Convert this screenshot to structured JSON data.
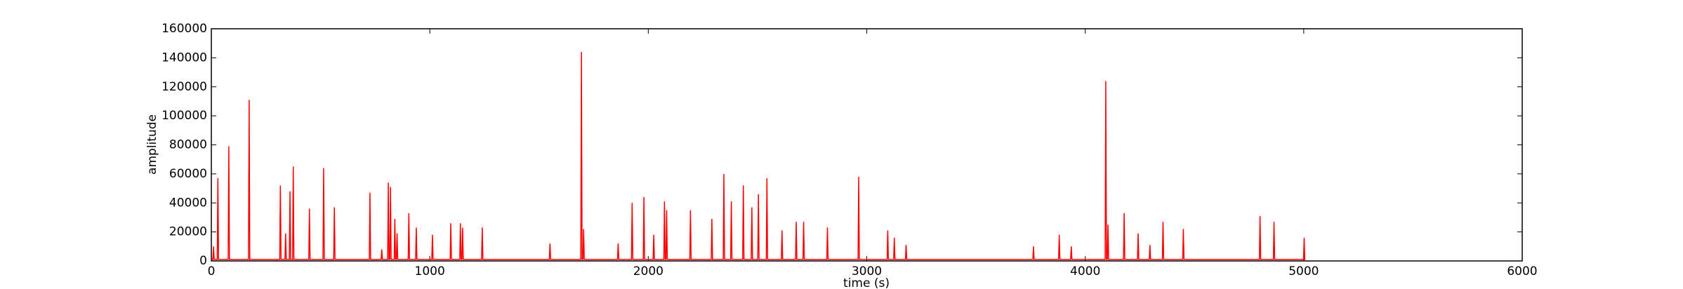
{
  "chart_data": {
    "type": "line",
    "xlabel": "time (s)",
    "ylabel": "amplitude",
    "xlim": [
      0,
      6000
    ],
    "xticks": [
      0,
      1000,
      2000,
      3000,
      4000,
      5000,
      6000
    ],
    "ylim": [
      0,
      160000
    ],
    "yticks": [
      0,
      20000,
      40000,
      60000,
      80000,
      100000,
      120000,
      140000,
      160000
    ],
    "grid": false,
    "series": [
      {
        "color": "#ff0000",
        "x": [
          0,
          7,
          10,
          13,
          27,
          30,
          33,
          77,
          80,
          83,
          170,
          173,
          176,
          313,
          316,
          319,
          337,
          340,
          343,
          357,
          360,
          363,
          372,
          375,
          378,
          446,
          449,
          452,
          511,
          514,
          517,
          560,
          563,
          566,
          723,
          726,
          729,
          777,
          780,
          783,
          807,
          810,
          813,
          817,
          820,
          823,
          837,
          840,
          843,
          847,
          850,
          853,
          901,
          904,
          907,
          935,
          938,
          941,
          1009,
          1012,
          1015,
          1093,
          1096,
          1099,
          1137,
          1140,
          1143,
          1147,
          1150,
          1153,
          1237,
          1240,
          1243,
          1547,
          1550,
          1553,
          1691,
          1694,
          1697,
          1701,
          1704,
          1707,
          1859,
          1862,
          1865,
          1923,
          1926,
          1929,
          1977,
          1980,
          1983,
          2022,
          2025,
          2028,
          2071,
          2074,
          2077,
          2081,
          2084,
          2087,
          2190,
          2193,
          2196,
          2288,
          2291,
          2294,
          2343,
          2346,
          2349,
          2377,
          2380,
          2383,
          2432,
          2435,
          2438,
          2471,
          2474,
          2477,
          2501,
          2504,
          2507,
          2540,
          2543,
          2546,
          2609,
          2612,
          2615,
          2674,
          2677,
          2680,
          2708,
          2711,
          2714,
          2817,
          2820,
          2823,
          2960,
          2963,
          2966,
          3093,
          3096,
          3099,
          3123,
          3126,
          3129,
          3177,
          3180,
          3183,
          3760,
          3763,
          3766,
          3878,
          3881,
          3884,
          3933,
          3936,
          3939,
          4091,
          4094,
          4097,
          4101,
          4104,
          4107,
          4175,
          4178,
          4181,
          4239,
          4242,
          4245,
          4293,
          4296,
          4299,
          4353,
          4356,
          4359,
          4446,
          4449,
          4452,
          4797,
          4800,
          4803,
          4861,
          4864,
          4867,
          4999,
          5002,
          5005
        ],
        "values": [
          2000,
          1000,
          10000,
          1000,
          1000,
          57000,
          1000,
          1000,
          79000,
          1000,
          1000,
          111000,
          1000,
          1000,
          52000,
          1000,
          1000,
          19000,
          1000,
          1000,
          48000,
          1000,
          1000,
          65000,
          1000,
          1000,
          36000,
          1000,
          1000,
          64000,
          1000,
          1000,
          37000,
          1000,
          1000,
          47000,
          1000,
          1000,
          8000,
          1000,
          1000,
          54000,
          1000,
          1000,
          51000,
          1000,
          1000,
          29000,
          1000,
          1000,
          19000,
          1000,
          1000,
          33000,
          1000,
          1000,
          23000,
          1000,
          1000,
          18000,
          1000,
          1000,
          26000,
          1000,
          1000,
          26000,
          1000,
          1000,
          23000,
          1000,
          1000,
          23000,
          1000,
          1000,
          12000,
          1000,
          1000,
          144000,
          1000,
          1000,
          22000,
          1000,
          1000,
          12000,
          1000,
          1000,
          40000,
          1000,
          1000,
          44000,
          1000,
          1000,
          18000,
          1000,
          1000,
          41000,
          1000,
          1000,
          35000,
          1000,
          1000,
          35000,
          1000,
          1000,
          29000,
          1000,
          1000,
          60000,
          1000,
          1000,
          41000,
          1000,
          1000,
          52000,
          1000,
          1000,
          37000,
          1000,
          1000,
          46000,
          1000,
          1000,
          57000,
          1000,
          1000,
          21000,
          1000,
          1000,
          27000,
          1000,
          1000,
          27000,
          1000,
          1000,
          23000,
          1000,
          1000,
          58000,
          1000,
          1000,
          21000,
          1000,
          1000,
          16000,
          1000,
          1000,
          11000,
          1000,
          1000,
          10000,
          1000,
          1000,
          18000,
          1000,
          1000,
          10000,
          1000,
          1000,
          124000,
          1000,
          1000,
          25000,
          1000,
          1000,
          33000,
          1000,
          1000,
          19000,
          1000,
          1000,
          11000,
          1000,
          1000,
          27000,
          1000,
          1000,
          22000,
          1000,
          1000,
          31000,
          1000,
          1000,
          27000,
          1000,
          1000,
          16000,
          0
        ]
      }
    ]
  }
}
